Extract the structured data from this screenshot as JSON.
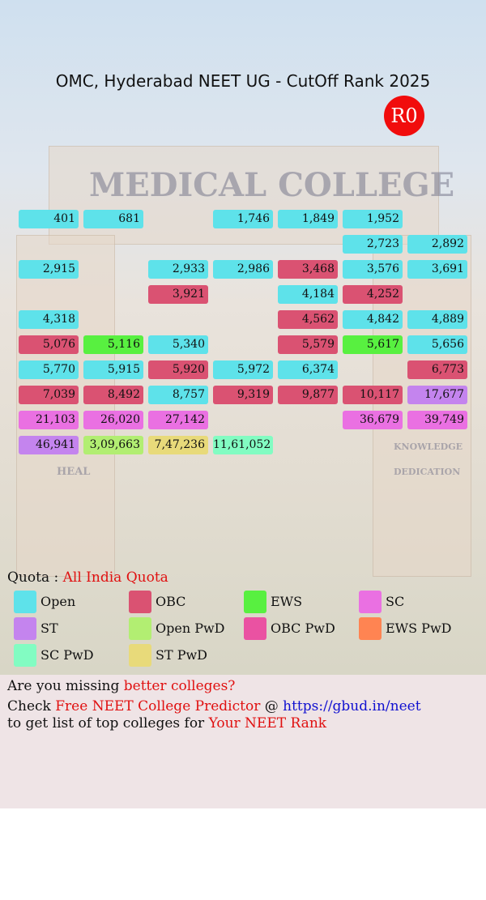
{
  "header": {
    "title": "OMC, Hyderabad NEET UG - CutOff Rank 2025",
    "round": "R0"
  },
  "background": {
    "sign": "MEDICAL COLLEGE",
    "left_pillar": "HEAL",
    "right_pillar_1": "KNOWLEDGE",
    "right_pillar_2": "DEDICATION"
  },
  "table": {
    "rows": [
      [
        {
          "rank": "401",
          "quota": "Open"
        },
        {
          "rank": "681",
          "quota": "Open"
        },
        null,
        {
          "rank": "1,746",
          "quota": "Open"
        },
        {
          "rank": "1,849",
          "quota": "Open"
        },
        {
          "rank": "1,952",
          "quota": "Open"
        },
        null
      ],
      [
        null,
        null,
        null,
        null,
        null,
        {
          "rank": "2,723",
          "quota": "Open"
        },
        {
          "rank": "2,892",
          "quota": "Open"
        }
      ],
      [
        {
          "rank": "2,915",
          "quota": "Open"
        },
        null,
        {
          "rank": "2,933",
          "quota": "Open"
        },
        {
          "rank": "2,986",
          "quota": "Open"
        },
        {
          "rank": "3,468",
          "quota": "OBC"
        },
        {
          "rank": "3,576",
          "quota": "Open"
        },
        {
          "rank": "3,691",
          "quota": "Open"
        }
      ],
      [
        null,
        null,
        {
          "rank": "3,921",
          "quota": "OBC"
        },
        null,
        {
          "rank": "4,184",
          "quota": "Open"
        },
        {
          "rank": "4,252",
          "quota": "OBC"
        },
        null
      ],
      [
        {
          "rank": "4,318",
          "quota": "Open"
        },
        null,
        null,
        null,
        {
          "rank": "4,562",
          "quota": "OBC"
        },
        {
          "rank": "4,842",
          "quota": "Open"
        },
        {
          "rank": "4,889",
          "quota": "Open"
        }
      ],
      [
        {
          "rank": "5,076",
          "quota": "OBC"
        },
        {
          "rank": "5,116",
          "quota": "EWS"
        },
        {
          "rank": "5,340",
          "quota": "Open"
        },
        null,
        {
          "rank": "5,579",
          "quota": "OBC"
        },
        {
          "rank": "5,617",
          "quota": "EWS"
        },
        {
          "rank": "5,656",
          "quota": "Open"
        }
      ],
      [
        {
          "rank": "5,770",
          "quota": "Open"
        },
        {
          "rank": "5,915",
          "quota": "Open"
        },
        {
          "rank": "5,920",
          "quota": "OBC"
        },
        {
          "rank": "5,972",
          "quota": "Open"
        },
        {
          "rank": "6,374",
          "quota": "Open"
        },
        null,
        {
          "rank": "6,773",
          "quota": "OBC"
        }
      ],
      [
        {
          "rank": "7,039",
          "quota": "OBC"
        },
        {
          "rank": "8,492",
          "quota": "OBC"
        },
        {
          "rank": "8,757",
          "quota": "Open"
        },
        {
          "rank": "9,319",
          "quota": "OBC"
        },
        {
          "rank": "9,877",
          "quota": "OBC"
        },
        {
          "rank": "10,117",
          "quota": "OBC"
        },
        {
          "rank": "17,677",
          "quota": "ST"
        }
      ],
      [
        {
          "rank": "21,103",
          "quota": "SC"
        },
        {
          "rank": "26,020",
          "quota": "SC"
        },
        {
          "rank": "27,142",
          "quota": "SC"
        },
        null,
        null,
        {
          "rank": "36,679",
          "quota": "SC"
        },
        {
          "rank": "39,749",
          "quota": "SC"
        }
      ],
      [
        {
          "rank": "46,941",
          "quota": "ST"
        },
        {
          "rank": "3,09,663",
          "quota": "Open PwD"
        },
        {
          "rank": "7,47,236",
          "quota": "ST PwD"
        },
        {
          "rank": "11,61,052",
          "quota": "SC PwD"
        },
        null,
        null,
        null
      ]
    ]
  },
  "quota": {
    "label": "Quota :",
    "value": "All India Quota"
  },
  "legend": [
    {
      "label": "Open",
      "color": "#5ee2ea"
    },
    {
      "label": "OBC",
      "color": "#da5272"
    },
    {
      "label": "EWS",
      "color": "#58f040"
    },
    {
      "label": "SC",
      "color": "#ea70e2"
    },
    {
      "label": "ST",
      "color": "#c484ee"
    },
    {
      "label": "Open PwD",
      "color": "#b2ee72"
    },
    {
      "label": "OBC PwD",
      "color": "#ea52a2"
    },
    {
      "label": "EWS PwD",
      "color": "#ff8452"
    },
    {
      "label": "SC PwD",
      "color": "#82fcc2"
    },
    {
      "label": "ST PwD",
      "color": "#e8da7a"
    }
  ],
  "footer": {
    "line1": [
      "Are you missing ",
      "better colleges?"
    ],
    "line2": [
      "Check ",
      "Free NEET College Predictor",
      " @ ",
      "https://gbud.in/neet"
    ],
    "line3": [
      "to get list of top colleges for ",
      "Your NEET Rank"
    ]
  }
}
